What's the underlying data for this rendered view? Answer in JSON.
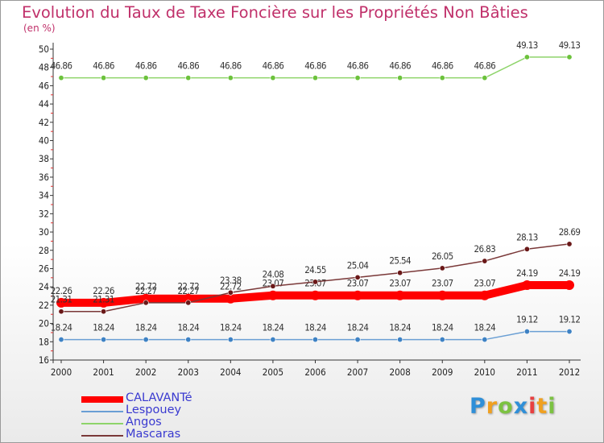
{
  "chart_data": {
    "type": "line",
    "title": "Evolution du Taux de Taxe Foncière sur les Propriétés Non Bâties",
    "subtitle": "(en %)",
    "x": [
      "2000",
      "2001",
      "2002",
      "2003",
      "2004",
      "2005",
      "2006",
      "2007",
      "2008",
      "2009",
      "2010",
      "2011",
      "2012"
    ],
    "ylim": [
      16,
      50
    ],
    "yticks": [
      "16",
      "18",
      "20",
      "22",
      "24",
      "26",
      "28",
      "30",
      "32",
      "34",
      "36",
      "38",
      "40",
      "42",
      "44",
      "46",
      "48",
      "50"
    ],
    "grid": false,
    "legend_position": "bottom-left",
    "series": [
      {
        "name": "CALAVANTé",
        "color": "#ff0000",
        "thick": true,
        "values": [
          22.26,
          22.26,
          22.72,
          22.72,
          22.72,
          23.07,
          23.07,
          23.07,
          23.07,
          23.07,
          23.07,
          24.19,
          24.19
        ],
        "labels": [
          "22.26",
          "22.26",
          "22.72",
          "22.72",
          "22.72",
          "23.07",
          "23.07",
          "23.07",
          "23.07",
          "23.07",
          "23.07",
          "24.19",
          "24.19"
        ]
      },
      {
        "name": "Lespouey",
        "color": "#6a9fd4",
        "marker": "#3e82c4",
        "values": [
          18.24,
          18.24,
          18.24,
          18.24,
          18.24,
          18.24,
          18.24,
          18.24,
          18.24,
          18.24,
          18.24,
          19.12,
          19.12
        ],
        "labels": [
          "18.24",
          "18.24",
          "18.24",
          "18.24",
          "18.24",
          "18.24",
          "18.24",
          "18.24",
          "18.24",
          "18.24",
          "18.24",
          "19.12",
          "19.12"
        ]
      },
      {
        "name": "Angos",
        "color": "#8ed46a",
        "marker": "#6cc23c",
        "values": [
          46.86,
          46.86,
          46.86,
          46.86,
          46.86,
          46.86,
          46.86,
          46.86,
          46.86,
          46.86,
          46.86,
          49.13,
          49.13
        ],
        "labels": [
          "46.86",
          "46.86",
          "46.86",
          "46.86",
          "46.86",
          "46.86",
          "46.86",
          "46.86",
          "46.86",
          "46.86",
          "46.86",
          "49.13",
          "49.13"
        ]
      },
      {
        "name": "Mascaras",
        "color": "#7a3838",
        "marker": "#6a1818",
        "values": [
          21.31,
          21.31,
          22.27,
          22.27,
          23.38,
          24.08,
          24.55,
          25.04,
          25.54,
          26.05,
          26.83,
          28.13,
          28.69
        ],
        "labels": [
          "21.31",
          "21.31",
          "22.27",
          "22.27",
          "23.38",
          "24.08",
          "24.55",
          "25.04",
          "25.54",
          "26.05",
          "26.83",
          "28.13",
          "28.69"
        ]
      }
    ]
  },
  "logo": {
    "text": "Proxiti",
    "letters": [
      "P",
      "r",
      "o",
      "x",
      "i",
      "t",
      "i"
    ]
  }
}
